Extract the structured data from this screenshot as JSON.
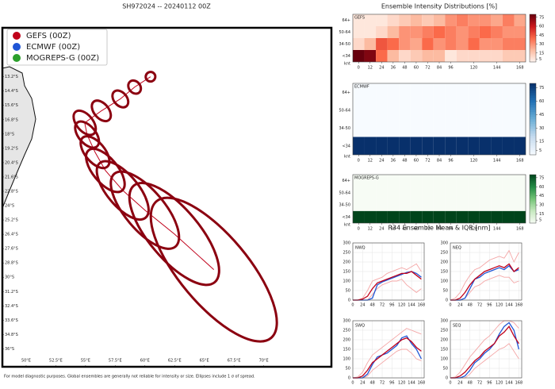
{
  "footer": "For model diagnostic purposes. Global ensembles are generally not reliable for intensity or size. Ellipses include 1 σ of spread.",
  "chart_data": [
    {
      "type": "map",
      "title": "SH972024 -- 20240112 00Z",
      "xlim": [
        48,
        75.7
      ],
      "ylim": [
        -37.5,
        -9.1
      ],
      "xticks": [
        {
          "value": 50,
          "label": "50°E"
        },
        {
          "value": 52.5,
          "label": "52.5°E"
        },
        {
          "value": 55,
          "label": "55°E"
        },
        {
          "value": 57.5,
          "label": "57.5°E"
        },
        {
          "value": 60,
          "label": "60°E"
        },
        {
          "value": 62.5,
          "label": "62.5°E"
        },
        {
          "value": 65,
          "label": "65°E"
        },
        {
          "value": 67.5,
          "label": "67.5°E"
        },
        {
          "value": 70,
          "label": "70°E"
        }
      ],
      "yticks": [
        {
          "value": -13.2,
          "label": "13.2°S"
        },
        {
          "value": -14.4,
          "label": "14.4°S"
        },
        {
          "value": -15.6,
          "label": "15.6°S"
        },
        {
          "value": -16.8,
          "label": "16.8°S"
        },
        {
          "value": -18,
          "label": "18°S"
        },
        {
          "value": -19.2,
          "label": "19.2°S"
        },
        {
          "value": -20.4,
          "label": "20.4°S"
        },
        {
          "value": -21.6,
          "label": "21.6°S"
        },
        {
          "value": -22.8,
          "label": "22.8°S"
        },
        {
          "value": -24,
          "label": "24°S"
        },
        {
          "value": -25.2,
          "label": "25.2°S"
        },
        {
          "value": -26.4,
          "label": "26.4°S"
        },
        {
          "value": -27.6,
          "label": "27.6°S"
        },
        {
          "value": -28.8,
          "label": "28.8°S"
        },
        {
          "value": -30,
          "label": "30°S"
        },
        {
          "value": -31.2,
          "label": "31.2°S"
        },
        {
          "value": -32.4,
          "label": "32.4°S"
        },
        {
          "value": -33.6,
          "label": "33.6°S"
        },
        {
          "value": -34.8,
          "label": "34.8°S"
        },
        {
          "value": -36,
          "label": "36°S"
        }
      ],
      "series": [
        {
          "name": "GEFS (00Z)",
          "color": "#c0001a",
          "x": [
            60.47,
            59.13,
            57.93,
            56.33,
            54.93,
            55.13,
            55.8,
            56.67,
            58.13,
            60.0,
            62.47,
            65.8
          ],
          "values": [
            -13.2,
            -14.07,
            -15.06,
            -16.06,
            -17.06,
            -18.05,
            -19.52,
            -21.05,
            -22.72,
            -24.38,
            -26.37,
            -29.36
          ],
          "sizes": [
            0.4,
            0.6,
            0.8,
            1.0,
            1.2,
            1.3,
            1.6,
            2.2,
            3.0,
            4.0,
            5.3,
            7.5
          ]
        },
        {
          "name": "ECMWF (00Z)",
          "color": "#1f55d6"
        },
        {
          "name": "MOGREPS-G (00Z)",
          "color": "#2ca02c"
        }
      ]
    },
    {
      "type": "heatmap",
      "title": "Ensemble Intensity Distributions [%]",
      "label": "GEFS",
      "ylabel": "knt",
      "x": [
        0,
        12,
        24,
        36,
        48,
        60,
        72,
        84,
        96,
        108,
        120,
        132,
        144,
        156,
        168
      ],
      "xlim": [
        -6,
        174
      ],
      "xticks": [
        0,
        12,
        24,
        36,
        48,
        60,
        72,
        84,
        96,
        120,
        144,
        168
      ],
      "categories": [
        "<34",
        "34-50",
        "50-64",
        "64+"
      ],
      "values": [
        [
          80,
          75,
          40,
          20,
          10,
          15,
          20,
          20,
          5,
          10,
          10,
          10,
          10,
          15,
          15
        ],
        [
          10,
          20,
          45,
          40,
          30,
          25,
          40,
          30,
          35,
          30,
          40,
          30,
          30,
          35,
          35
        ],
        [
          5,
          5,
          10,
          20,
          30,
          30,
          35,
          40,
          35,
          30,
          35,
          40,
          35,
          30,
          30
        ],
        [
          5,
          5,
          5,
          10,
          15,
          20,
          15,
          20,
          30,
          35,
          30,
          30,
          25,
          35,
          25
        ]
      ],
      "clim": [
        0,
        80
      ],
      "cticks": [
        5,
        15,
        30,
        45,
        60,
        75
      ],
      "colors": [
        "#fff5f0",
        "#fcbba1",
        "#fb6a4a",
        "#cb181d",
        "#67000d"
      ]
    },
    {
      "type": "heatmap",
      "label": "ECMWF",
      "ylabel": "knt",
      "x": [
        0,
        12,
        24,
        36,
        48,
        60,
        72,
        84,
        96,
        108,
        120,
        132,
        144,
        156,
        168
      ],
      "xlim": [
        -6,
        174
      ],
      "xticks": [
        0,
        12,
        24,
        36,
        48,
        60,
        72,
        84,
        96,
        120,
        144,
        168
      ],
      "categories": [
        "<34",
        "34-50",
        "50-64",
        "64+"
      ],
      "values": [
        [
          100,
          100,
          100,
          100,
          100,
          100,
          100,
          100,
          100,
          100,
          100,
          100,
          100,
          100,
          100
        ],
        [
          0,
          0,
          0,
          0,
          0,
          0,
          0,
          0,
          0,
          0,
          0,
          0,
          0,
          0,
          0
        ],
        [
          0,
          0,
          0,
          0,
          0,
          0,
          0,
          0,
          0,
          0,
          0,
          0,
          0,
          0,
          0
        ],
        [
          0,
          0,
          0,
          0,
          0,
          0,
          0,
          0,
          0,
          0,
          0,
          0,
          0,
          0,
          0
        ]
      ],
      "clim": [
        0,
        80
      ],
      "cticks": [
        5,
        15,
        30,
        45,
        60,
        75
      ],
      "colors": [
        "#f7fbff",
        "#c6dbef",
        "#6baed6",
        "#2171b5",
        "#08306b"
      ]
    },
    {
      "type": "heatmap",
      "label": "MOGREPS-G",
      "ylabel": "knt",
      "x": [
        0,
        12,
        24,
        36,
        48,
        60,
        72,
        84,
        96,
        108,
        120,
        132,
        144,
        156,
        168
      ],
      "xlim": [
        -6,
        174
      ],
      "xticks": [
        0,
        12,
        24,
        36,
        48,
        60,
        72,
        84,
        96,
        120,
        144,
        168
      ],
      "categories": [
        "<34",
        "34-50",
        "50-64",
        "64+"
      ],
      "values": [
        [
          100,
          100,
          100,
          100,
          100,
          100,
          100,
          100,
          100,
          100,
          100,
          100,
          100,
          100,
          100
        ],
        [
          0,
          0,
          0,
          0,
          0,
          0,
          0,
          0,
          0,
          0,
          0,
          0,
          0,
          0,
          0
        ],
        [
          0,
          0,
          0,
          0,
          0,
          0,
          0,
          0,
          0,
          0,
          0,
          0,
          0,
          0,
          0
        ],
        [
          0,
          0,
          0,
          0,
          0,
          0,
          0,
          0,
          0,
          0,
          0,
          0,
          0,
          0,
          0
        ]
      ],
      "clim": [
        0,
        80
      ],
      "cticks": [
        5,
        15,
        30,
        45,
        60,
        75
      ],
      "colors": [
        "#f7fcf5",
        "#c7e9c0",
        "#74c476",
        "#238b45",
        "#00441b"
      ]
    },
    {
      "type": "line",
      "title": "R34 Ensemble Mean & IQR [nm]",
      "label": "NWQ",
      "grid": true,
      "x": [
        0,
        12,
        24,
        36,
        48,
        60,
        72,
        84,
        96,
        108,
        120,
        132,
        144,
        156,
        168
      ],
      "xlim": [
        0,
        175
      ],
      "ylim": [
        0,
        300
      ],
      "xticks": [
        0,
        24,
        48,
        72,
        96,
        120,
        144,
        168
      ],
      "yticks": [
        0,
        50,
        100,
        150,
        200,
        250,
        300
      ],
      "series": [
        {
          "color": "#f4a6a6",
          "values": [
            0,
            0,
            10,
            50,
            100,
            110,
            120,
            140,
            150,
            160,
            170,
            160,
            175,
            190,
            150
          ]
        },
        {
          "color": "#f4a6a6",
          "values": [
            0,
            0,
            0,
            0,
            30,
            60,
            80,
            90,
            100,
            100,
            110,
            80,
            60,
            40,
            60
          ]
        },
        {
          "color": "#1f55d6",
          "values": [
            0,
            0,
            0,
            0,
            10,
            80,
            95,
            105,
            115,
            125,
            135,
            145,
            150,
            140,
            120
          ]
        },
        {
          "color": "#c0001a",
          "values": [
            0,
            0,
            5,
            20,
            60,
            90,
            100,
            110,
            120,
            130,
            140,
            140,
            150,
            130,
            110
          ]
        }
      ]
    },
    {
      "type": "line",
      "label": "NEQ",
      "grid": true,
      "x": [
        0,
        12,
        24,
        36,
        48,
        60,
        72,
        84,
        96,
        108,
        120,
        132,
        144,
        156,
        168
      ],
      "xlim": [
        0,
        175
      ],
      "ylim": [
        0,
        300
      ],
      "xticks": [
        0,
        24,
        48,
        72,
        96,
        120,
        144,
        168
      ],
      "yticks": [
        0,
        50,
        100,
        150,
        200,
        250,
        300
      ],
      "series": [
        {
          "color": "#f4a6a6",
          "values": [
            0,
            10,
            40,
            90,
            130,
            160,
            170,
            190,
            210,
            220,
            230,
            220,
            260,
            200,
            250
          ]
        },
        {
          "color": "#f4a6a6",
          "values": [
            0,
            0,
            0,
            10,
            40,
            70,
            80,
            100,
            110,
            120,
            130,
            120,
            120,
            90,
            100
          ]
        },
        {
          "color": "#1f55d6",
          "values": [
            0,
            0,
            0,
            10,
            60,
            110,
            120,
            140,
            150,
            160,
            170,
            160,
            180,
            150,
            160
          ]
        },
        {
          "color": "#c0001a",
          "values": [
            0,
            0,
            10,
            40,
            80,
            110,
            130,
            150,
            160,
            170,
            180,
            170,
            190,
            150,
            170
          ]
        }
      ]
    },
    {
      "type": "line",
      "label": "SWQ",
      "grid": true,
      "x": [
        0,
        12,
        24,
        36,
        48,
        60,
        72,
        84,
        96,
        108,
        120,
        132,
        144,
        156,
        168
      ],
      "xlim": [
        0,
        175
      ],
      "ylim": [
        0,
        300
      ],
      "xticks": [
        0,
        24,
        48,
        72,
        96,
        120,
        144,
        168
      ],
      "yticks": [
        0,
        50,
        100,
        150,
        200,
        250,
        300
      ],
      "series": [
        {
          "color": "#f4a6a6",
          "values": [
            0,
            5,
            30,
            80,
            120,
            140,
            160,
            180,
            200,
            220,
            240,
            260,
            250,
            240,
            230
          ]
        },
        {
          "color": "#f4a6a6",
          "values": [
            0,
            0,
            0,
            10,
            40,
            60,
            80,
            100,
            120,
            140,
            150,
            150,
            130,
            100,
            90
          ]
        },
        {
          "color": "#1f55d6",
          "values": [
            0,
            0,
            0,
            20,
            70,
            110,
            120,
            130,
            150,
            170,
            210,
            220,
            180,
            150,
            100
          ]
        },
        {
          "color": "#c0001a",
          "values": [
            0,
            0,
            10,
            40,
            80,
            100,
            120,
            140,
            160,
            180,
            200,
            210,
            190,
            160,
            140
          ]
        }
      ]
    },
    {
      "type": "line",
      "label": "SEQ",
      "grid": true,
      "x": [
        0,
        12,
        24,
        36,
        48,
        60,
        72,
        84,
        96,
        108,
        120,
        132,
        144,
        156,
        168
      ],
      "xlim": [
        0,
        175
      ],
      "ylim": [
        0,
        300
      ],
      "xticks": [
        0,
        24,
        48,
        72,
        96,
        120,
        144,
        168
      ],
      "yticks": [
        0,
        50,
        100,
        150,
        200,
        250,
        300
      ],
      "series": [
        {
          "color": "#f4a6a6",
          "values": [
            0,
            5,
            30,
            70,
            110,
            140,
            170,
            200,
            220,
            250,
            280,
            300,
            300,
            290,
            260
          ]
        },
        {
          "color": "#f4a6a6",
          "values": [
            0,
            0,
            0,
            0,
            20,
            50,
            70,
            90,
            110,
            130,
            150,
            160,
            180,
            140,
            100
          ]
        },
        {
          "color": "#1f55d6",
          "values": [
            0,
            0,
            0,
            10,
            40,
            80,
            100,
            130,
            150,
            180,
            230,
            270,
            290,
            250,
            150
          ]
        },
        {
          "color": "#c0001a",
          "values": [
            0,
            0,
            10,
            30,
            60,
            90,
            110,
            140,
            160,
            180,
            220,
            240,
            270,
            220,
            180
          ]
        }
      ]
    }
  ]
}
